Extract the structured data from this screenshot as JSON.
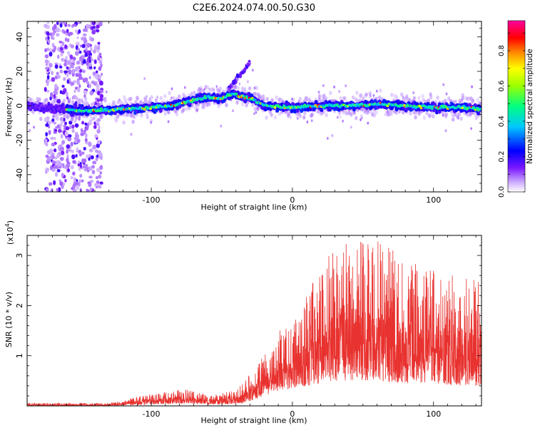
{
  "title": "C2E6.2024.074.00.50.G30",
  "chart_data": [
    {
      "type": "heatmap",
      "xlabel": "Height of straight line (km)",
      "ylabel": "Frequency (Hz)",
      "xlim": [
        -188,
        134
      ],
      "ylim": [
        -50,
        49
      ],
      "x_ticks": [
        "-100",
        "0",
        "100"
      ],
      "y_ticks": [
        "-40",
        "-20",
        "0",
        "20",
        "40"
      ],
      "colorbar": {
        "label": "Normalized spectral amplitude",
        "range": [
          0.0,
          0.97
        ],
        "ticks": [
          "0.0",
          "0.2",
          "0.4",
          "0.6",
          "0.8"
        ],
        "colormap": [
          "#ffffff",
          "#b388ff",
          "#6a00ff",
          "#0000ff",
          "#00c8ff",
          "#00ff80",
          "#9cff00",
          "#ffff00",
          "#ff8000",
          "#ff0000",
          "#ff00a0"
        ]
      },
      "ridge_trace": {
        "x": [
          -188,
          -150,
          -120,
          -100,
          -85,
          -72,
          -62,
          -52,
          -42,
          -35,
          -28,
          -20,
          0,
          20,
          40,
          60,
          80,
          100,
          120,
          134
        ],
        "y": [
          0,
          -3,
          -2,
          -1,
          0,
          3,
          5,
          4,
          7,
          5,
          4,
          0,
          -1,
          0,
          0,
          1,
          0,
          -1,
          -1,
          -2
        ]
      },
      "noise_band_x": [
        -175,
        -135
      ],
      "excursion_x": [
        -45,
        -30
      ],
      "excursion_y": [
        10,
        25
      ]
    },
    {
      "type": "line",
      "xlabel": "Height of straight line (km)",
      "ylabel": "SNR (10 * v/v)",
      "y_scale_label": "(x10",
      "y_scale_exp": "4",
      "y_scale_close": ")",
      "xlim": [
        -188,
        134
      ],
      "ylim": [
        0,
        3.4
      ],
      "x_ticks": [
        "-100",
        "0",
        "100"
      ],
      "y_ticks": [
        "1",
        "2",
        "3"
      ],
      "line_color": "#e8322f",
      "envelope": {
        "x": [
          -188,
          -130,
          -120,
          -110,
          -100,
          -90,
          -80,
          -70,
          -60,
          -50,
          -40,
          -35,
          -30,
          -25,
          -20,
          -15,
          -10,
          0,
          10,
          20,
          30,
          40,
          60,
          80,
          100,
          120,
          134
        ],
        "upper": [
          0.06,
          0.06,
          0.12,
          0.18,
          0.24,
          0.28,
          0.35,
          0.3,
          0.22,
          0.25,
          0.32,
          0.45,
          0.7,
          0.9,
          1.0,
          1.3,
          1.5,
          1.7,
          2.3,
          2.7,
          3.2,
          3.3,
          3.3,
          3.0,
          2.7,
          2.6,
          2.5
        ],
        "lower": [
          0.0,
          0.0,
          0.01,
          0.02,
          0.03,
          0.04,
          0.05,
          0.05,
          0.03,
          0.03,
          0.04,
          0.06,
          0.1,
          0.15,
          0.2,
          0.25,
          0.3,
          0.35,
          0.4,
          0.45,
          0.5,
          0.5,
          0.5,
          0.45,
          0.45,
          0.4,
          0.4
        ]
      }
    }
  ]
}
